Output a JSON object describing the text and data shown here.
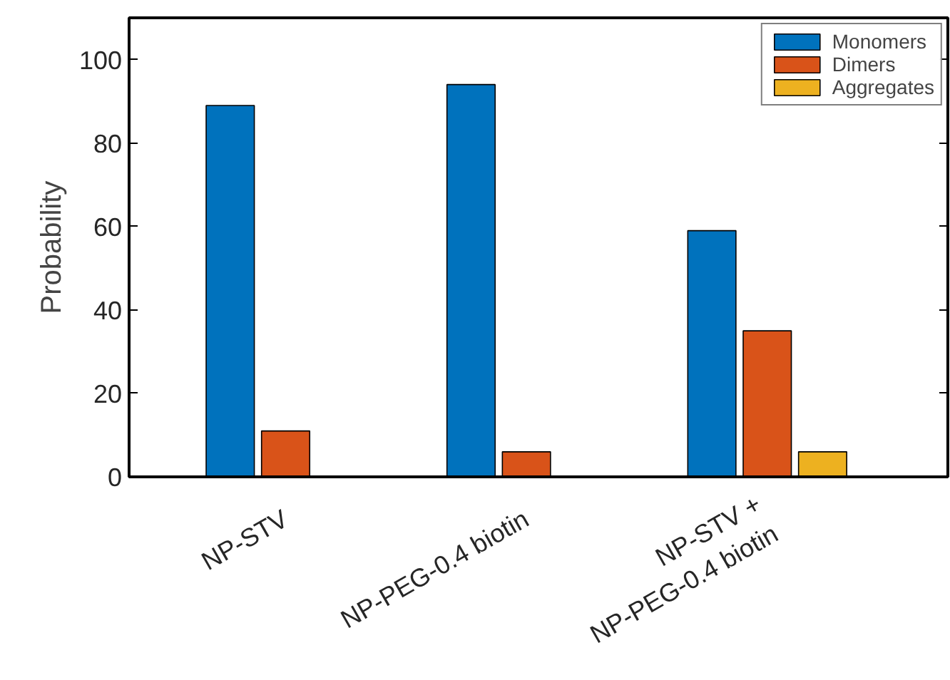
{
  "chart_data": {
    "type": "bar",
    "ylabel": "Probability",
    "categories": [
      "NP-STV",
      "NP-PEG-0.4 biotin",
      "NP-STV +\nNP-PEG-0.4 biotin"
    ],
    "series": [
      {
        "name": "Monomers",
        "color": "#0072bd",
        "values": [
          89,
          94,
          59
        ]
      },
      {
        "name": "Dimers",
        "color": "#d95319",
        "values": [
          11,
          6,
          35
        ]
      },
      {
        "name": "Aggregates",
        "color": "#edb120",
        "values": [
          null,
          null,
          6
        ]
      }
    ],
    "ylim": [
      0,
      110
    ],
    "yticks": [
      0,
      20,
      40,
      60,
      80,
      100
    ],
    "grid": false,
    "legend": "top right"
  }
}
